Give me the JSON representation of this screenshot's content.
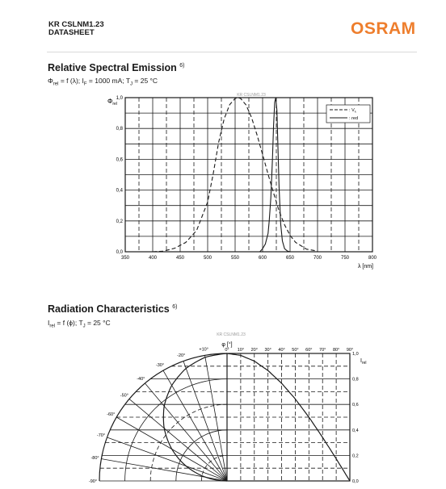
{
  "header": {
    "product": "KR CSLNM1.23",
    "doc_type": "DATASHEET",
    "logo": "OSRAM",
    "brand_color": "#ee7e2d"
  },
  "spectral": {
    "title": "Relative Spectral Emission",
    "title_ref": "6)",
    "formula_prefix": "Φ",
    "formula_prefix_sub": "rel",
    "formula_middle": " = f (λ); I",
    "formula_current_sub": "F",
    "formula_tail": " = 1000 mA; T",
    "formula_temp_sub": "J",
    "formula_end": " = 25 °C",
    "watermark": "KR CSLNM1.23",
    "ylabel": "Φ",
    "ylabel_sub": "rel",
    "xlabel": "λ [nm]",
    "legend": [
      "V",
      "red"
    ],
    "legend_v_sub": "λ"
  },
  "radiation": {
    "title": "Radiation Characteristics",
    "title_ref": "6)",
    "formula_prefix": "I",
    "formula_prefix_sub": "rel",
    "formula_rest": " = f (ϕ); T",
    "formula_temp_sub": "J",
    "formula_end": " = 25 °C",
    "watermark": "KR CSLNM1.23",
    "angle_label": "φ [°]",
    "ylabel": "I",
    "ylabel_sub": "rel"
  },
  "chart_data": [
    {
      "type": "line",
      "xlim": [
        350,
        800
      ],
      "ylim": [
        0,
        1.0
      ],
      "x_ticks": [
        "350",
        "400",
        "450",
        "500",
        "550",
        "600",
        "650",
        "700",
        "750",
        "800"
      ],
      "y_ticks": [
        "0,0",
        "0,2",
        "0,4",
        "0,6",
        "0,8",
        "1,0"
      ],
      "grid": true,
      "legend_position": "top-right",
      "series": [
        {
          "name": "V",
          "style": "dashed",
          "x": [
            400,
            420,
            440,
            460,
            480,
            500,
            510,
            520,
            530,
            540,
            550,
            555,
            560,
            570,
            580,
            590,
            600,
            610,
            620,
            630,
            640,
            650,
            660,
            680,
            700
          ],
          "y": [
            0.0,
            0.004,
            0.023,
            0.06,
            0.139,
            0.323,
            0.503,
            0.71,
            0.862,
            0.954,
            0.995,
            1.0,
            0.995,
            0.952,
            0.87,
            0.757,
            0.631,
            0.503,
            0.381,
            0.265,
            0.175,
            0.107,
            0.061,
            0.017,
            0.004
          ]
        },
        {
          "name": "red",
          "style": "solid",
          "x": [
            595,
            600,
            605,
            610,
            612,
            615,
            618,
            620,
            622,
            624,
            626,
            628,
            630,
            633,
            636,
            640,
            645,
            650
          ],
          "y": [
            0.0,
            0.02,
            0.05,
            0.12,
            0.2,
            0.35,
            0.6,
            0.82,
            0.97,
            1.0,
            0.92,
            0.68,
            0.42,
            0.18,
            0.07,
            0.02,
            0.005,
            0.0
          ]
        }
      ]
    },
    {
      "type": "line",
      "subtype": "polar",
      "angle_ticks_left": [
        "+10°",
        "-20°",
        "-30°",
        "-40°",
        "-50°",
        "-60°",
        "-70°",
        "-80°",
        "-90°"
      ],
      "angle_ticks_top": [
        "0°",
        "10°",
        "20°",
        "30°",
        "40°",
        "50°",
        "60°",
        "70°",
        "80°",
        "90°"
      ],
      "y_ticks": [
        "1,0",
        "0,8",
        "0,6",
        "0,4",
        "0,2",
        "0,0"
      ],
      "ylim": [
        0,
        1.0
      ],
      "series": [
        {
          "name": "",
          "angle_deg": [
            0,
            10,
            20,
            30,
            40,
            50,
            60,
            70,
            80,
            90
          ],
          "value": [
            1.0,
            0.985,
            0.94,
            0.866,
            0.766,
            0.643,
            0.5,
            0.342,
            0.174,
            0.0
          ]
        }
      ]
    }
  ]
}
